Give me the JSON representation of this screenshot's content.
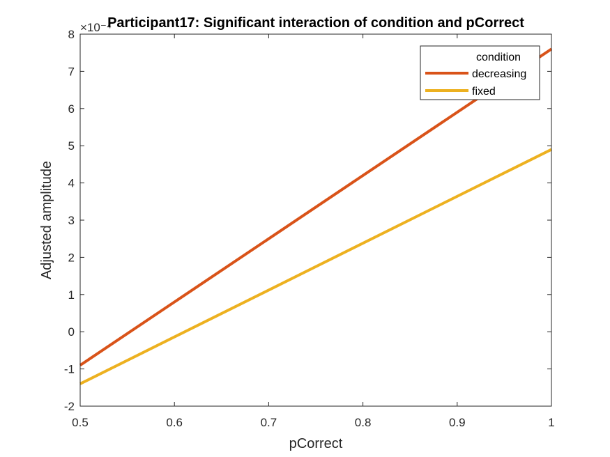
{
  "chart_data": {
    "type": "line",
    "title": "Participant17: Significant interaction of condition and pCorrect",
    "xlabel": "pCorrect",
    "ylabel": "Adjusted amplitude",
    "y_exponent_label": "×10⁻⁴",
    "xlim": [
      0.5,
      1
    ],
    "ylim": [
      -2,
      8
    ],
    "xticks": [
      "0.5",
      "0.6",
      "0.7",
      "0.8",
      "0.9",
      "1"
    ],
    "yticks": [
      "-2",
      "-1",
      "0",
      "1",
      "2",
      "3",
      "4",
      "5",
      "6",
      "7",
      "8"
    ],
    "grid": false,
    "legend": {
      "title": "condition",
      "position": "top-right"
    },
    "series": [
      {
        "name": "decreasing",
        "color": "#D95319",
        "x": [
          0.5,
          1
        ],
        "y": [
          -0.9,
          7.6
        ]
      },
      {
        "name": "fixed",
        "color": "#EDB120",
        "x": [
          0.5,
          1
        ],
        "y": [
          -1.4,
          4.9
        ]
      }
    ]
  }
}
